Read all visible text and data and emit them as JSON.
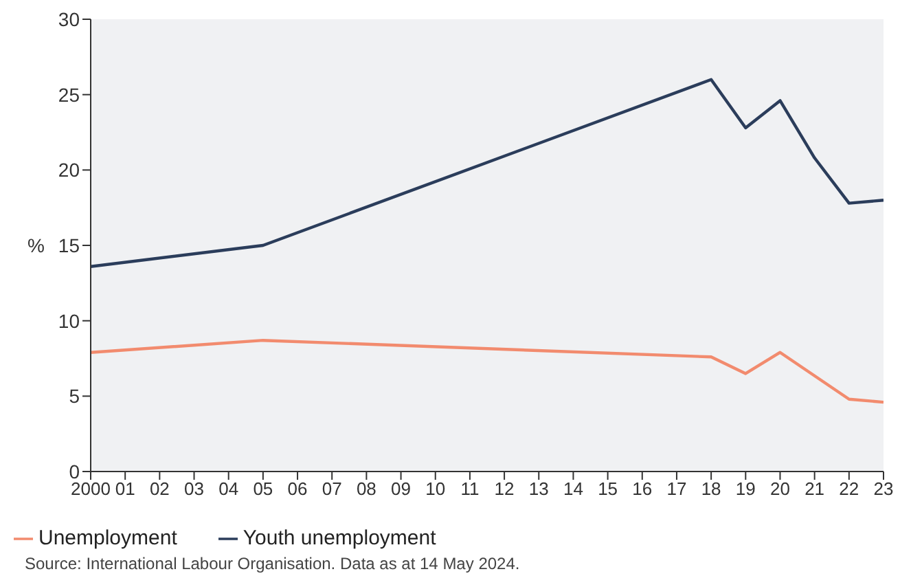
{
  "chart_data": {
    "type": "line",
    "ylabel": "%",
    "xlim": [
      2000,
      2023
    ],
    "xticks": [
      {
        "value": 2000,
        "label": "2000"
      },
      {
        "value": 2001,
        "label": "01"
      },
      {
        "value": 2002,
        "label": "02"
      },
      {
        "value": 2003,
        "label": "03"
      },
      {
        "value": 2004,
        "label": "04"
      },
      {
        "value": 2005,
        "label": "05"
      },
      {
        "value": 2006,
        "label": "06"
      },
      {
        "value": 2007,
        "label": "07"
      },
      {
        "value": 2008,
        "label": "08"
      },
      {
        "value": 2009,
        "label": "09"
      },
      {
        "value": 2010,
        "label": "10"
      },
      {
        "value": 2011,
        "label": "11"
      },
      {
        "value": 2012,
        "label": "12"
      },
      {
        "value": 2013,
        "label": "13"
      },
      {
        "value": 2014,
        "label": "14"
      },
      {
        "value": 2015,
        "label": "15"
      },
      {
        "value": 2016,
        "label": "16"
      },
      {
        "value": 2017,
        "label": "17"
      },
      {
        "value": 2018,
        "label": "18"
      },
      {
        "value": 2019,
        "label": "19"
      },
      {
        "value": 2020,
        "label": "20"
      },
      {
        "value": 2021,
        "label": "21"
      },
      {
        "value": 2022,
        "label": "22"
      },
      {
        "value": 2023,
        "label": "23"
      }
    ],
    "ylim": [
      0,
      30
    ],
    "yticks": [
      0,
      5,
      10,
      15,
      20,
      25,
      30
    ],
    "legend": "bottom",
    "marker": "none",
    "line_style": "solid",
    "series": [
      {
        "name": "Unemployment",
        "color": "#f28b6e",
        "x": [
          2000,
          2005,
          2018,
          2019,
          2020,
          2022,
          2023
        ],
        "values": [
          7.9,
          8.7,
          7.6,
          6.5,
          7.9,
          4.8,
          4.6
        ]
      },
      {
        "name": "Youth unemployment",
        "color": "#2b3d5b",
        "x": [
          2000,
          2005,
          2018,
          2019,
          2020,
          2021,
          2022,
          2023
        ],
        "values": [
          13.6,
          15.0,
          26.0,
          22.8,
          24.6,
          20.8,
          17.8,
          18.0
        ]
      }
    ],
    "annotations": [
      "Source: International Labour Organisation. Data as at 14 May 2024."
    ]
  }
}
